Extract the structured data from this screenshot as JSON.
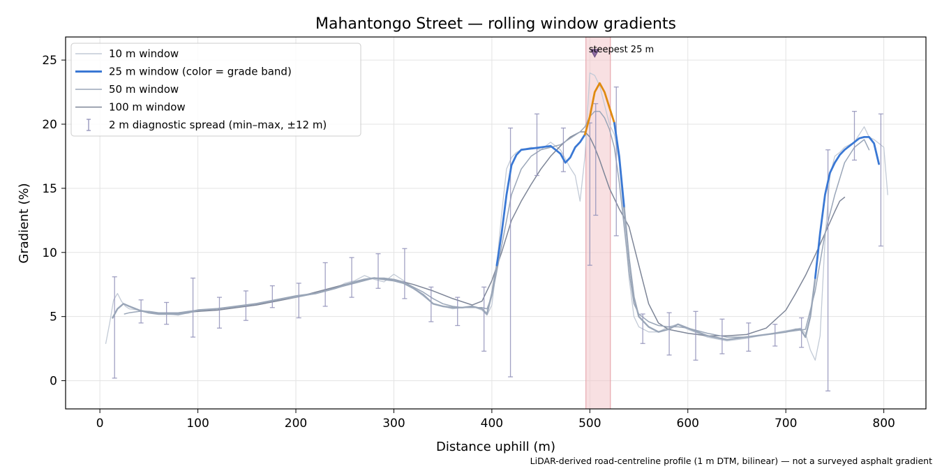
{
  "chart_data": {
    "type": "line",
    "title": "Mahantongo Street — rolling window gradients",
    "xlabel": "Distance uphill (m)",
    "ylabel": "Gradient (%)",
    "xlim": [
      -35,
      843
    ],
    "ylim": [
      -2.2,
      26.8
    ],
    "xticks": [
      0,
      100,
      200,
      300,
      400,
      500,
      600,
      700,
      800
    ],
    "yticks": [
      0,
      5,
      10,
      15,
      20,
      25
    ],
    "grid": true,
    "legend_position": "top-left",
    "footnote": "LiDAR-derived road-centreline profile (1 m DTM, bilinear) — not a surveyed asphalt gradient",
    "highlight": {
      "x_range": [
        496,
        521
      ],
      "label": "steepest 25 m",
      "marker": {
        "x": 505,
        "y": 25.5
      }
    },
    "colors": {
      "accent": "#3a78d4",
      "steep": "#e08a10",
      "band": "#f2c6cb",
      "errorbar": "#9090b8",
      "annotation": "#c83232"
    },
    "legend": [
      {
        "label": "10 m window",
        "color": "#c2cad6"
      },
      {
        "label": "25 m window (color = grade band)",
        "color": "#3a78d4"
      },
      {
        "label": "50 m window",
        "color": "#9aa6b8"
      },
      {
        "label": "100 m window",
        "color": "#7d8597"
      },
      {
        "label": "2 m diagnostic spread (min–max, ±12 m)",
        "color": "#9090b8"
      }
    ],
    "series": [
      {
        "name": "10 m window",
        "color": "#c2cad6",
        "width": 1.3,
        "x": [
          6,
          10,
          14,
          18,
          22,
          26,
          30,
          40,
          50,
          60,
          70,
          80,
          90,
          100,
          120,
          140,
          160,
          180,
          200,
          220,
          240,
          250,
          260,
          270,
          280,
          290,
          300,
          310,
          320,
          330,
          340,
          350,
          360,
          370,
          380,
          390,
          395,
          400,
          405,
          410,
          415,
          420,
          425,
          430,
          440,
          450,
          460,
          470,
          480,
          485,
          490,
          495,
          500,
          505,
          510,
          515,
          520,
          525,
          530,
          535,
          540,
          545,
          550,
          560,
          570,
          580,
          590,
          600,
          620,
          640,
          660,
          680,
          700,
          710,
          715,
          720,
          725,
          730,
          735,
          740,
          745,
          750,
          755,
          760,
          770,
          775,
          780,
          785,
          790,
          795,
          800,
          804
        ],
        "y": [
          2.9,
          4.5,
          6.3,
          6.8,
          6.2,
          5.8,
          5.6,
          5.5,
          5.4,
          5.2,
          5.2,
          5.1,
          5.3,
          5.4,
          5.6,
          5.8,
          6.0,
          6.3,
          6.6,
          6.8,
          7.2,
          7.6,
          7.8,
          8.2,
          7.9,
          7.7,
          8.3,
          7.8,
          7.2,
          6.6,
          6.0,
          5.8,
          5.6,
          5.7,
          5.8,
          5.5,
          5.1,
          5.9,
          9.0,
          13.0,
          16.5,
          17.4,
          17.8,
          18.0,
          18.2,
          18.0,
          18.6,
          18.0,
          16.6,
          16.0,
          14.0,
          17.5,
          24.0,
          23.8,
          23.0,
          21.5,
          20.0,
          19.2,
          17.0,
          12.5,
          8.0,
          5.0,
          4.2,
          3.8,
          3.8,
          4.2,
          4.4,
          4.0,
          3.4,
          3.1,
          3.3,
          3.6,
          3.9,
          4.0,
          4.1,
          3.7,
          2.4,
          1.6,
          3.5,
          11.0,
          16.0,
          17.5,
          17.8,
          18.2,
          18.6,
          19.2,
          19.8,
          19.0,
          18.8,
          18.5,
          18.2,
          14.5
        ]
      },
      {
        "name": "25 m window (color = grade band)",
        "color": "#3a78d4",
        "width": 2.8,
        "x": [
          13,
          18,
          24,
          30,
          40,
          50,
          60,
          70,
          80,
          90,
          100,
          120,
          140,
          160,
          180,
          200,
          220,
          240,
          260,
          270,
          280,
          290,
          300,
          310,
          320,
          330,
          340,
          350,
          360,
          370,
          380,
          390,
          395,
          400,
          405,
          410,
          415,
          420,
          425,
          430,
          440,
          450,
          460,
          465,
          470,
          475,
          480,
          485,
          490,
          495,
          500,
          505,
          510,
          515,
          520,
          525,
          530,
          535,
          540,
          545,
          550,
          560,
          570,
          580,
          590,
          600,
          620,
          640,
          660,
          680,
          700,
          710,
          715,
          720,
          725,
          730,
          735,
          740,
          745,
          750,
          755,
          760,
          770,
          775,
          780,
          785,
          790,
          795
        ],
        "y": [
          4.9,
          5.6,
          6.0,
          5.8,
          5.5,
          5.3,
          5.2,
          5.2,
          5.2,
          5.3,
          5.5,
          5.6,
          5.8,
          6.0,
          6.3,
          6.6,
          6.8,
          7.2,
          7.7,
          7.9,
          8.0,
          7.9,
          7.8,
          7.6,
          7.2,
          6.7,
          6.0,
          5.8,
          5.7,
          5.7,
          5.8,
          5.6,
          5.2,
          6.8,
          9.0,
          11.5,
          14.5,
          16.8,
          17.6,
          18.0,
          18.1,
          18.2,
          18.3,
          18.0,
          17.7,
          17.0,
          17.4,
          18.2,
          18.6,
          19.2,
          20.6,
          22.5,
          23.2,
          22.5,
          21.3,
          20.1,
          17.5,
          13.5,
          9.5,
          6.5,
          5.0,
          4.2,
          3.8,
          4.0,
          4.4,
          4.1,
          3.5,
          3.2,
          3.4,
          3.6,
          3.8,
          4.0,
          4.0,
          3.4,
          5.0,
          8.0,
          11.5,
          14.5,
          16.2,
          17.0,
          17.6,
          18.0,
          18.6,
          18.9,
          19.0,
          19.0,
          18.5,
          16.9
        ]
      },
      {
        "name": "50 m window",
        "color": "#9aa6b8",
        "width": 1.5,
        "x": [
          25,
          30,
          40,
          50,
          60,
          70,
          80,
          90,
          100,
          120,
          140,
          160,
          180,
          200,
          220,
          240,
          260,
          280,
          290,
          300,
          310,
          320,
          330,
          340,
          350,
          360,
          370,
          380,
          390,
          395,
          400,
          405,
          410,
          420,
          430,
          440,
          450,
          460,
          470,
          480,
          490,
          495,
          500,
          505,
          510,
          515,
          520,
          525,
          530,
          535,
          540,
          545,
          550,
          560,
          570,
          580,
          590,
          600,
          620,
          640,
          660,
          680,
          700,
          710,
          720,
          730,
          740,
          750,
          760,
          770,
          780,
          785
        ],
        "y": [
          5.2,
          5.3,
          5.4,
          5.4,
          5.3,
          5.3,
          5.3,
          5.4,
          5.5,
          5.6,
          5.8,
          6.0,
          6.3,
          6.5,
          6.8,
          7.2,
          7.6,
          8.0,
          8.0,
          7.9,
          7.7,
          7.3,
          6.9,
          6.4,
          6.0,
          5.8,
          5.7,
          5.7,
          5.7,
          5.6,
          6.6,
          8.5,
          10.5,
          14.5,
          16.5,
          17.5,
          18.0,
          18.2,
          18.4,
          18.9,
          19.4,
          19.8,
          20.6,
          21.0,
          21.0,
          20.5,
          19.6,
          18.2,
          15.5,
          12.0,
          8.5,
          6.0,
          5.2,
          4.6,
          4.3,
          4.2,
          4.2,
          4.1,
          3.7,
          3.4,
          3.4,
          3.6,
          3.8,
          3.9,
          4.0,
          7.0,
          11.5,
          14.5,
          17.0,
          18.2,
          18.8,
          18.0
        ]
      },
      {
        "name": "100 m window",
        "color": "#7d8597",
        "width": 1.5,
        "x": [
          50,
          60,
          80,
          100,
          120,
          140,
          160,
          180,
          200,
          220,
          240,
          260,
          280,
          300,
          320,
          340,
          360,
          380,
          390,
          400,
          410,
          420,
          430,
          440,
          450,
          460,
          470,
          480,
          490,
          495,
          500,
          505,
          510,
          515,
          520,
          530,
          540,
          550,
          560,
          570,
          580,
          600,
          620,
          640,
          660,
          680,
          700,
          710,
          720,
          730,
          740,
          750,
          755,
          760
        ],
        "y": [
          5.3,
          5.3,
          5.3,
          5.4,
          5.5,
          5.7,
          5.9,
          6.2,
          6.5,
          6.9,
          7.3,
          7.7,
          8.0,
          7.9,
          7.5,
          7.0,
          6.4,
          5.9,
          6.2,
          7.8,
          10.0,
          12.5,
          14.0,
          15.3,
          16.5,
          17.5,
          18.3,
          19.0,
          19.4,
          19.4,
          19.0,
          18.2,
          17.2,
          16.1,
          15.0,
          13.4,
          12.0,
          9.0,
          6.0,
          4.5,
          4.0,
          3.7,
          3.5,
          3.5,
          3.6,
          4.1,
          5.5,
          6.8,
          8.2,
          9.8,
          11.5,
          13.2,
          14.0,
          14.3
        ]
      }
    ],
    "errorbars": [
      {
        "x": 15,
        "min": 0.2,
        "max": 8.1
      },
      {
        "x": 42,
        "min": 4.5,
        "max": 6.3
      },
      {
        "x": 68,
        "min": 4.4,
        "max": 6.1
      },
      {
        "x": 95,
        "min": 3.4,
        "max": 8.0
      },
      {
        "x": 122,
        "min": 4.1,
        "max": 6.5
      },
      {
        "x": 149,
        "min": 4.7,
        "max": 7.0
      },
      {
        "x": 176,
        "min": 5.7,
        "max": 7.4
      },
      {
        "x": 203,
        "min": 4.9,
        "max": 7.6
      },
      {
        "x": 230,
        "min": 5.8,
        "max": 9.2
      },
      {
        "x": 257,
        "min": 6.5,
        "max": 9.6
      },
      {
        "x": 284,
        "min": 7.2,
        "max": 9.9
      },
      {
        "x": 311,
        "min": 6.4,
        "max": 10.3
      },
      {
        "x": 338,
        "min": 4.6,
        "max": 7.3
      },
      {
        "x": 365,
        "min": 4.3,
        "max": 6.5
      },
      {
        "x": 392,
        "min": 2.3,
        "max": 7.3
      },
      {
        "x": 419,
        "min": 0.3,
        "max": 19.7
      },
      {
        "x": 446,
        "min": 16.0,
        "max": 20.8
      },
      {
        "x": 473,
        "min": 16.3,
        "max": 19.7
      },
      {
        "x": 500,
        "min": 9.0,
        "max": 20.1
      },
      {
        "x": 506,
        "min": 12.9,
        "max": 21.6
      },
      {
        "x": 527,
        "min": 11.3,
        "max": 22.9
      },
      {
        "x": 554,
        "min": 2.9,
        "max": 5.2
      },
      {
        "x": 581,
        "min": 2.0,
        "max": 5.3
      },
      {
        "x": 608,
        "min": 1.6,
        "max": 5.4
      },
      {
        "x": 635,
        "min": 2.1,
        "max": 4.8
      },
      {
        "x": 662,
        "min": 2.3,
        "max": 4.5
      },
      {
        "x": 689,
        "min": 2.7,
        "max": 4.4
      },
      {
        "x": 716,
        "min": 2.6,
        "max": 4.9
      },
      {
        "x": 743,
        "min": -0.8,
        "max": 18.0
      },
      {
        "x": 770,
        "min": 17.2,
        "max": 21.0
      },
      {
        "x": 797,
        "min": 10.5,
        "max": 20.8
      }
    ]
  }
}
